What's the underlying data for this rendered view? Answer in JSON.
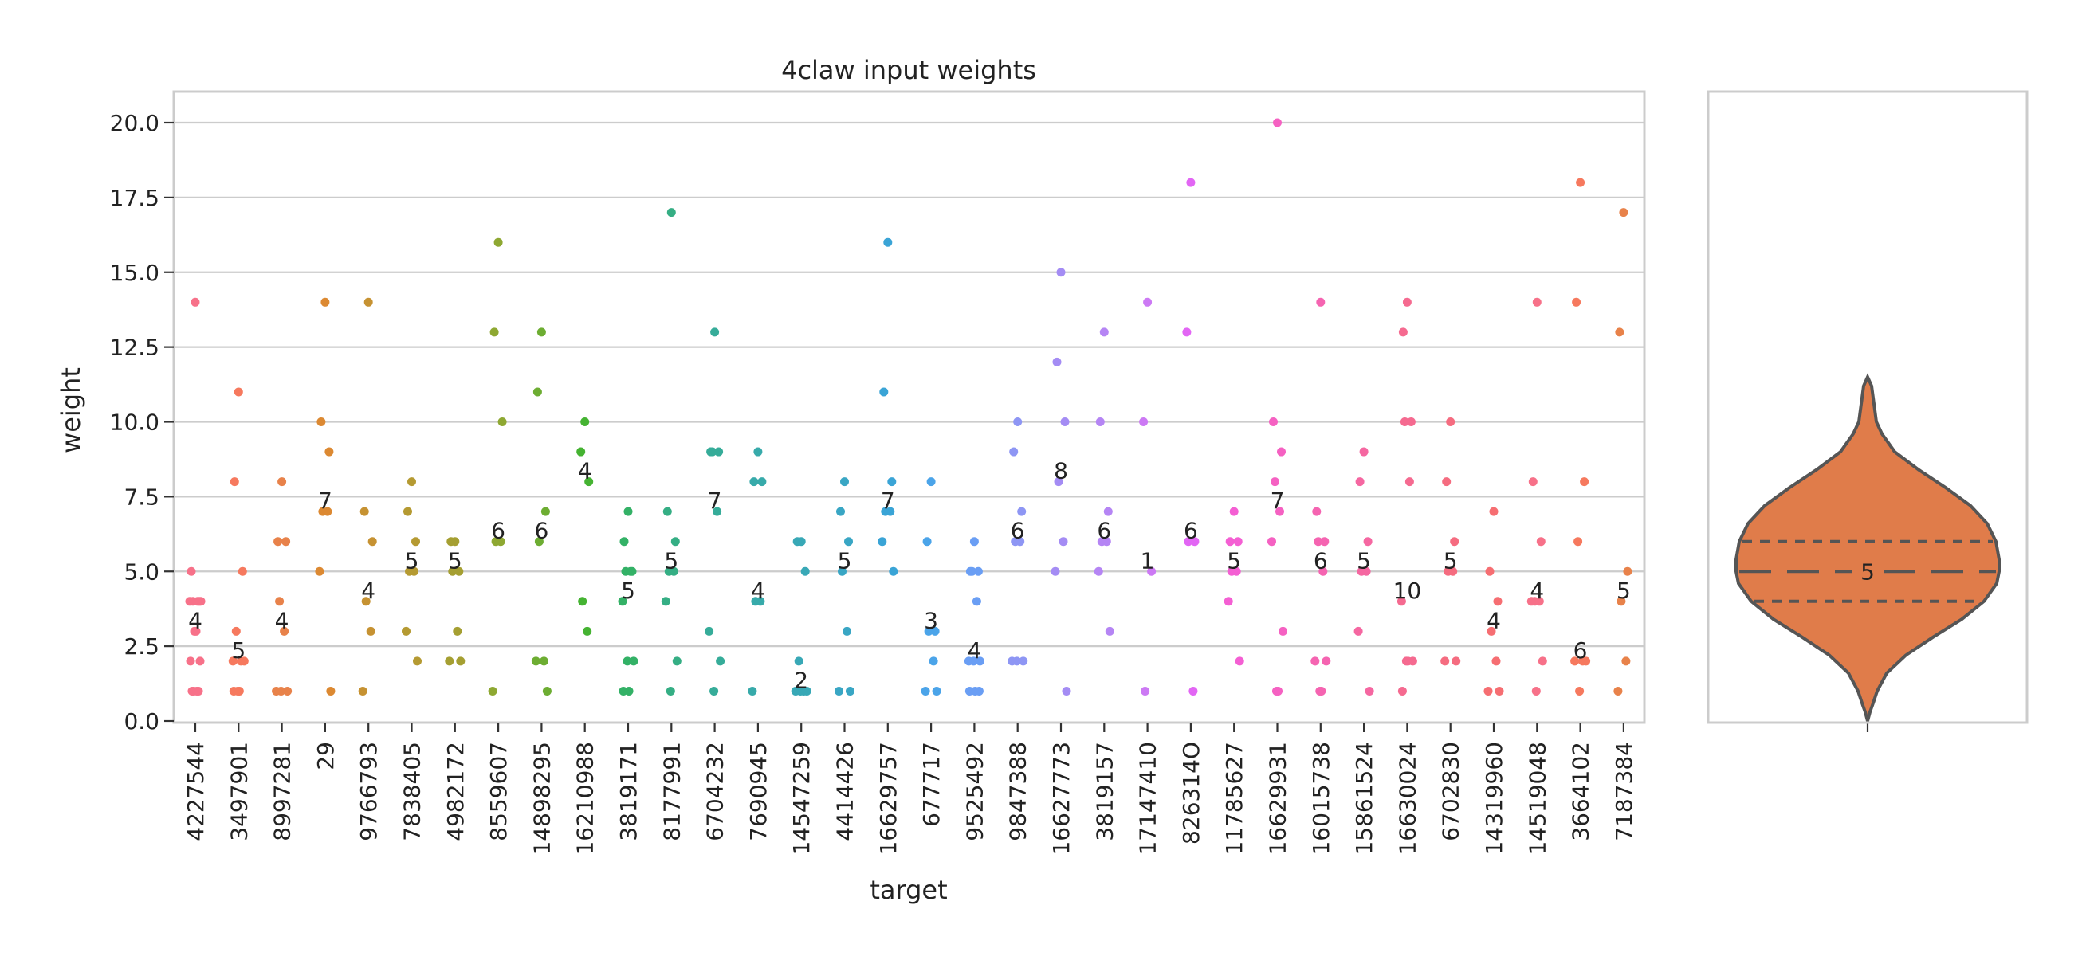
{
  "chart_data": [
    {
      "type": "scatter",
      "subtype": "strip",
      "title": "4claw input weights",
      "xlabel": "target",
      "ylabel": "weight",
      "ylim": [
        0,
        21
      ],
      "yticks": [
        "0.0",
        "2.5",
        "5.0",
        "7.5",
        "10.0",
        "12.5",
        "15.0",
        "17.5",
        "20.0"
      ],
      "grid": "horizontal",
      "categories": [
        "4227544",
        "3497901",
        "8997281",
        "29",
        "9766793",
        "7838405",
        "4982172",
        "8559607",
        "14898295",
        "16210988",
        "3819171",
        "8177991",
        "6704232",
        "7690945",
        "14547259",
        "4414426",
        "16629757",
        "677717",
        "9525492",
        "9847388",
        "16627773",
        "3819157",
        "17147410",
        "826314O",
        "11785627",
        "16629931",
        "16015738",
        "15861524",
        "16630024",
        "6702830",
        "14319960",
        "14519048",
        "3664102",
        "7187384"
      ],
      "colors": [
        "#f77189",
        "#f6795e",
        "#e8824a",
        "#dc8932",
        "#c69232",
        "#b59a32",
        "#a59f32",
        "#8ea832",
        "#6dad32",
        "#45b332",
        "#33b166",
        "#35ae84",
        "#36ac99",
        "#37aaaa",
        "#38a8b6",
        "#39a6c4",
        "#3aa4d6",
        "#4ba4e9",
        "#6a9ef4",
        "#8e96f4",
        "#a48cf4",
        "#b585f4",
        "#cc79f4",
        "#e266f4",
        "#f45fd3",
        "#f561c2",
        "#f564b1",
        "#f567a1",
        "#f56a90",
        "#f56c80",
        "#f66e72",
        "#f77189",
        "#f6795e",
        "#e8824a"
      ],
      "counts": [
        "4",
        "5",
        "4",
        "7",
        "4",
        "5",
        "5",
        "6",
        "6",
        "4",
        "5",
        "5",
        "7",
        "4",
        "2",
        "5",
        "7",
        "3",
        "4",
        "6",
        "8",
        "6",
        "1",
        "6",
        "5",
        "7",
        "6",
        "5",
        "10",
        "5",
        "4",
        "4",
        "6",
        "5"
      ],
      "points": [
        [
          14,
          5,
          4,
          4,
          4,
          4,
          4,
          3,
          3,
          2,
          2,
          1,
          1,
          1,
          1
        ],
        [
          11,
          8,
          5,
          3,
          2,
          2,
          2,
          1,
          1,
          1
        ],
        [
          8,
          6,
          6,
          4,
          3,
          1,
          1,
          1
        ],
        [
          14,
          10,
          9,
          7,
          7,
          5,
          1
        ],
        [
          14,
          7,
          6,
          4,
          3,
          1
        ],
        [
          8,
          7,
          6,
          5,
          5,
          3,
          2
        ],
        [
          6,
          6,
          5,
          5,
          3,
          2,
          2
        ],
        [
          16,
          13,
          10,
          6,
          6,
          1
        ],
        [
          13,
          11,
          7,
          6,
          2,
          2,
          1
        ],
        [
          10,
          9,
          8,
          4,
          3
        ],
        [
          7,
          6,
          5,
          5,
          5,
          4,
          2,
          2,
          1,
          1
        ],
        [
          17,
          7,
          6,
          5,
          5,
          4,
          2,
          1
        ],
        [
          13,
          9,
          9,
          9,
          7,
          3,
          2,
          1
        ],
        [
          9,
          8,
          8,
          4,
          4,
          1
        ],
        [
          6,
          6,
          5,
          2,
          1,
          1,
          1,
          1
        ],
        [
          8,
          7,
          6,
          5,
          3,
          1,
          1
        ],
        [
          16,
          11,
          8,
          7,
          7,
          6,
          5
        ],
        [
          8,
          6,
          3,
          3,
          2,
          1,
          1
        ],
        [
          6,
          5,
          5,
          5,
          4,
          2,
          2,
          2,
          1,
          1,
          1
        ],
        [
          10,
          9,
          7,
          6,
          6,
          2,
          2,
          2
        ],
        [
          15,
          12,
          10,
          8,
          6,
          5,
          1
        ],
        [
          13,
          10,
          7,
          6,
          6,
          5,
          3
        ],
        [
          14,
          10,
          5,
          1
        ],
        [
          18,
          13,
          6,
          6,
          1
        ],
        [
          7,
          6,
          6,
          5,
          5,
          4,
          2
        ],
        [
          20,
          10,
          9,
          8,
          7,
          6,
          3,
          1,
          1
        ],
        [
          14,
          7,
          6,
          6,
          5,
          2,
          2,
          1,
          1
        ],
        [
          9,
          8,
          6,
          5,
          5,
          3,
          1
        ],
        [
          14,
          13,
          10,
          10,
          8,
          4,
          2,
          2,
          2,
          1
        ],
        [
          10,
          8,
          6,
          5,
          5,
          2,
          2
        ],
        [
          7,
          5,
          4,
          3,
          2,
          1,
          1
        ],
        [
          14,
          8,
          6,
          4,
          4,
          4,
          2,
          1
        ],
        [
          18,
          14,
          8,
          6,
          2,
          2,
          2,
          1
        ],
        [
          17,
          13,
          5,
          4,
          2,
          1
        ]
      ]
    },
    {
      "type": "violin",
      "values_summary": {
        "min": 0,
        "q1": 4,
        "median": 5,
        "q3": 6,
        "max": 11.5
      },
      "median_label": "5",
      "color": "#e07c4a"
    }
  ]
}
